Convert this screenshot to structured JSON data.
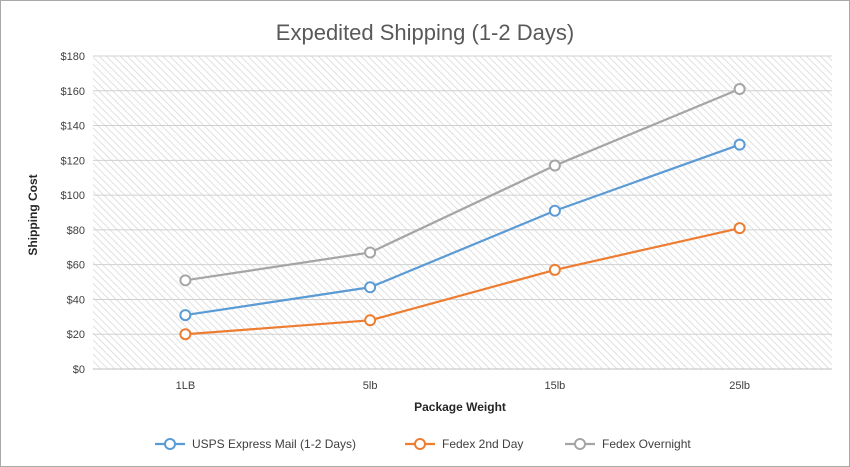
{
  "chart_data": {
    "type": "line",
    "title": "Expedited Shipping (1-2 Days)",
    "xlabel": "Package Weight",
    "ylabel": "Shipping Cost",
    "categories": [
      "1LB",
      "5lb",
      "15lb",
      "25lb"
    ],
    "ylim": [
      0,
      180
    ],
    "yticks": [
      "$0",
      "$20",
      "$40",
      "$60",
      "$80",
      "$100",
      "$120",
      "$140",
      "$160",
      "$180"
    ],
    "grid": true,
    "legend_position": "bottom",
    "series": [
      {
        "name": "USPS Express Mail (1-2 Days)",
        "color": "#5b9bd5",
        "values": [
          31,
          47,
          91,
          129
        ]
      },
      {
        "name": "Fedex 2nd Day",
        "color": "#ed7d31",
        "values": [
          20,
          28,
          57,
          81
        ]
      },
      {
        "name": "Fedex Overnight",
        "color": "#a5a5a5",
        "values": [
          51,
          67,
          117,
          161
        ]
      }
    ]
  }
}
